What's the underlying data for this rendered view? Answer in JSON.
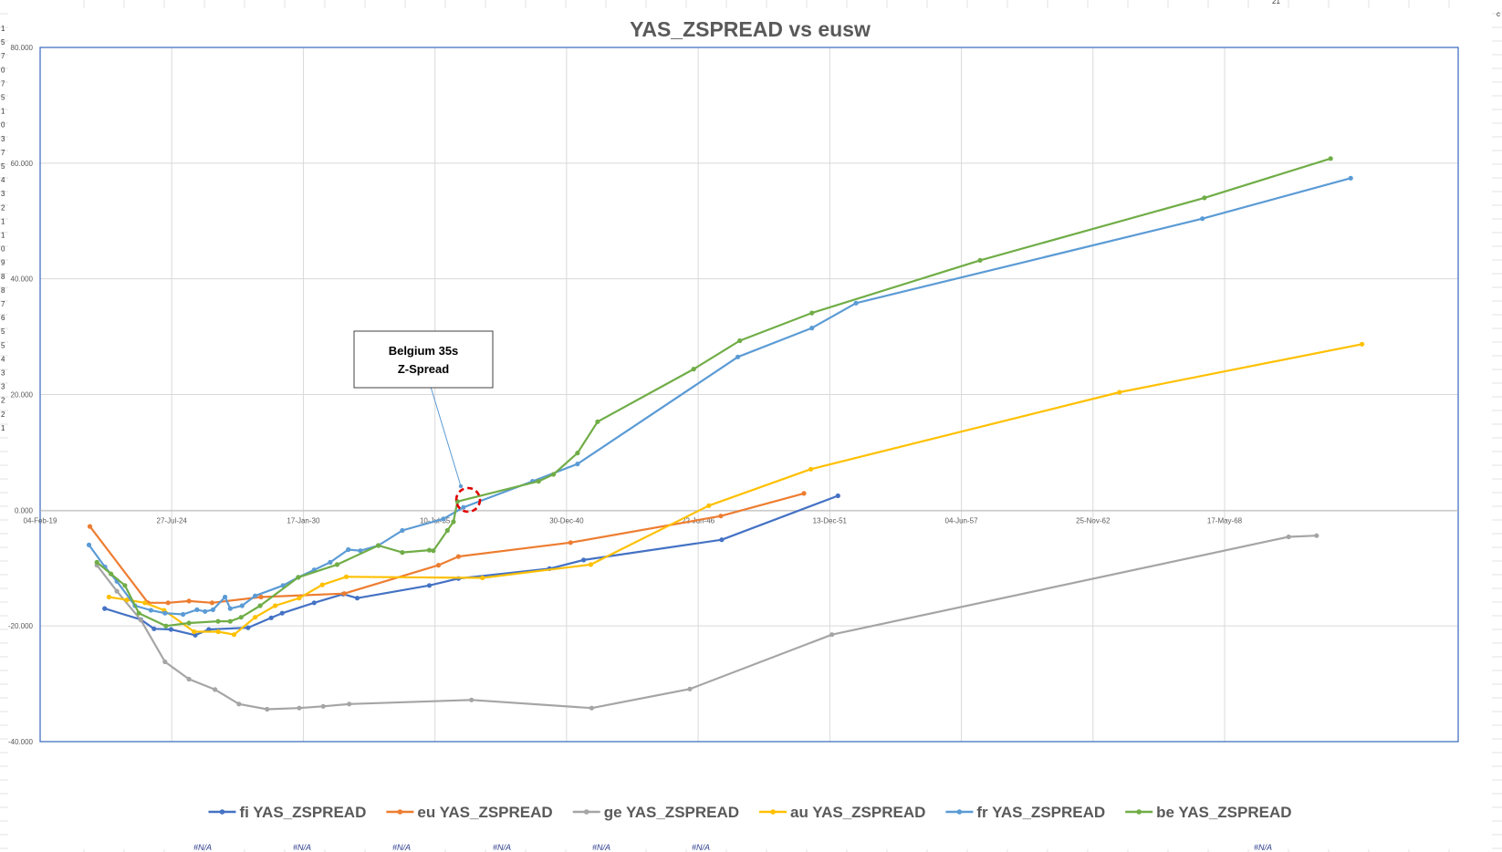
{
  "sheet": {
    "row_header_digits": [
      "1",
      "5",
      "7",
      "0",
      "7",
      "5",
      "1",
      "0",
      "3",
      "7",
      "5",
      "4",
      "3",
      "2",
      "1",
      "1",
      "0",
      "9",
      "8",
      "8",
      "7",
      "6",
      "5",
      "5",
      "4",
      "3",
      "3",
      "2",
      "2",
      "1"
    ],
    "top_cell_text": "21",
    "top_right_text": "c",
    "na_text": "#N/A",
    "na_count": 7
  },
  "chart_data": {
    "type": "line",
    "title": "YAS_ZSPREAD vs eusw",
    "xlabel": "",
    "ylabel": "",
    "x_axis": {
      "type": "date",
      "min": "2019-02-04",
      "max": "2078-02-04",
      "tick_labels": [
        "04-Feb-19",
        "27-Jul-24",
        "17-Jan-30",
        "10-Jul-35",
        "30-Dec-40",
        "22-Jun-46",
        "13-Dec-51",
        "04-Jun-57",
        "25-Nov-62",
        "17-May-68"
      ],
      "tick_dates": [
        "2019-02-04",
        "2024-07-27",
        "2030-01-17",
        "2035-07-10",
        "2040-12-30",
        "2046-06-22",
        "2051-12-13",
        "2057-06-04",
        "2062-11-25",
        "2068-05-17"
      ]
    },
    "y_axis": {
      "min": -40,
      "max": 80,
      "major": 20,
      "tick_labels": [
        "80.000",
        "60.000",
        "40.000",
        "20.000",
        "0.000",
        "-20.000",
        "-40.000"
      ]
    },
    "grid": true,
    "legend_position": "bottom",
    "series": [
      {
        "name": "fi YAS_ZSPREAD",
        "color": "#4472c4",
        "points": [
          [
            "2021-10-12",
            -17
          ],
          [
            "2023-04-15",
            -18.9
          ],
          [
            "2023-11-01",
            -20.5
          ],
          [
            "2024-07-15",
            -20.6
          ],
          [
            "2025-07-20",
            -21.6
          ],
          [
            "2026-02-10",
            -20.6
          ],
          [
            "2027-10-01",
            -20.3
          ],
          [
            "2028-09-15",
            -18.6
          ],
          [
            "2029-03-01",
            -17.8
          ],
          [
            "2030-07-01",
            -16
          ],
          [
            "2031-09-15",
            -14.5
          ],
          [
            "2032-04-15",
            -15.2
          ],
          [
            "2035-04-15",
            -13
          ],
          [
            "2036-07-01",
            -11.8
          ],
          [
            "2040-04-15",
            -10.1
          ],
          [
            "2041-09-15",
            -8.6
          ],
          [
            "2047-06-15",
            -5.1
          ],
          [
            "2052-04-15",
            2.5
          ]
        ]
      },
      {
        "name": "eu YAS_ZSPREAD",
        "color": "#ed7d31",
        "points": [
          [
            "2021-03-01",
            -2.8
          ],
          [
            "2023-08-01",
            -16
          ],
          [
            "2024-06-01",
            -16
          ],
          [
            "2025-04-15",
            -15.7
          ],
          [
            "2026-04-01",
            -16
          ],
          [
            "2028-04-15",
            -15
          ],
          [
            "2031-10-01",
            -14.4
          ],
          [
            "2035-09-01",
            -9.5
          ],
          [
            "2036-07-01",
            -8
          ],
          [
            "2041-03-01",
            -5.6
          ],
          [
            "2047-06-01",
            -1
          ],
          [
            "2050-11-15",
            2.9
          ]
        ]
      },
      {
        "name": "ge YAS_ZSPREAD",
        "color": "#a5a5a5",
        "points": [
          [
            "2021-06-15",
            -9.5
          ],
          [
            "2022-04-15",
            -14
          ],
          [
            "2023-04-15",
            -19
          ],
          [
            "2024-04-15",
            -26.2
          ],
          [
            "2025-04-15",
            -29.2
          ],
          [
            "2026-05-15",
            -31
          ],
          [
            "2027-05-15",
            -33.5
          ],
          [
            "2028-07-15",
            -34.4
          ],
          [
            "2029-11-15",
            -34.2
          ],
          [
            "2030-11-15",
            -33.9
          ],
          [
            "2031-12-15",
            -33.5
          ],
          [
            "2037-01-15",
            -32.8
          ],
          [
            "2042-01-15",
            -34.2
          ],
          [
            "2046-02-15",
            -30.9
          ],
          [
            "2052-01-15",
            -21.5
          ],
          [
            "2071-01-15",
            -4.6
          ],
          [
            "2072-03-15",
            -4.4
          ]
        ]
      },
      {
        "name": "au YAS_ZSPREAD",
        "color": "#ffc000",
        "points": [
          [
            "2021-12-15",
            -15
          ],
          [
            "2022-09-15",
            -15.5
          ],
          [
            "2023-06-15",
            -16
          ],
          [
            "2024-04-01",
            -17.3
          ],
          [
            "2025-07-01",
            -21
          ],
          [
            "2026-07-01",
            -21
          ],
          [
            "2027-03-01",
            -21.5
          ],
          [
            "2028-01-15",
            -18.5
          ],
          [
            "2028-11-15",
            -16.5
          ],
          [
            "2029-11-15",
            -15.2
          ],
          [
            "2030-11-01",
            -12.9
          ],
          [
            "2031-11-01",
            -11.5
          ],
          [
            "2037-07-01",
            -11.7
          ],
          [
            "2042-01-01",
            -9.4
          ],
          [
            "2046-12-01",
            0.8
          ],
          [
            "2051-03-01",
            7.1
          ],
          [
            "2064-01-01",
            20.4
          ],
          [
            "2074-02-04",
            28.7
          ]
        ]
      },
      {
        "name": "fr YAS_ZSPREAD",
        "color": "#5b9bd5",
        "points": [
          [
            "2021-02-15",
            -6
          ],
          [
            "2021-10-15",
            -9.8
          ],
          [
            "2022-04-15",
            -12.3
          ],
          [
            "2023-01-15",
            -16.5
          ],
          [
            "2023-09-15",
            -17.3
          ],
          [
            "2024-04-15",
            -17.8
          ],
          [
            "2025-01-15",
            -18
          ],
          [
            "2025-08-15",
            -17.2
          ],
          [
            "2025-12-15",
            -17.5
          ],
          [
            "2026-04-15",
            -17.2
          ],
          [
            "2026-10-15",
            -15
          ],
          [
            "2027-01-01",
            -17
          ],
          [
            "2027-07-01",
            -16.5
          ],
          [
            "2028-01-15",
            -14.8
          ],
          [
            "2029-03-15",
            -13
          ],
          [
            "2029-11-01",
            -11.6
          ],
          [
            "2030-07-01",
            -10.3
          ],
          [
            "2031-03-01",
            -9
          ],
          [
            "2031-12-01",
            -6.8
          ],
          [
            "2032-06-01",
            -7
          ],
          [
            "2033-03-01",
            -6.1
          ],
          [
            "2034-03-01",
            -3.5
          ],
          [
            "2035-11-15",
            -1.5
          ],
          [
            "2036-09-15",
            0.5
          ],
          [
            "2039-08-01",
            5
          ],
          [
            "2041-06-15",
            8
          ],
          [
            "2048-02-15",
            26.5
          ],
          [
            "2051-03-15",
            31.5
          ],
          [
            "2053-01-15",
            35.8
          ],
          [
            "2067-06-15",
            50.4
          ],
          [
            "2073-08-15",
            57.4
          ]
        ]
      },
      {
        "name": "be YAS_ZSPREAD",
        "color": "#70ad47",
        "points": [
          [
            "2021-06-15",
            -9
          ],
          [
            "2022-01-15",
            -11
          ],
          [
            "2022-08-15",
            -13
          ],
          [
            "2023-03-15",
            -17.8
          ],
          [
            "2024-05-01",
            -20
          ],
          [
            "2025-04-15",
            -19.5
          ],
          [
            "2026-07-01",
            -19.2
          ],
          [
            "2027-01-01",
            -19.2
          ],
          [
            "2027-06-15",
            -18.5
          ],
          [
            "2028-04-01",
            -16.5
          ],
          [
            "2029-11-01",
            -11.6
          ],
          [
            "2031-06-15",
            -9.4
          ],
          [
            "2033-03-01",
            -6.1
          ],
          [
            "2034-03-01",
            -7.3
          ],
          [
            "2035-04-15",
            -6.9
          ],
          [
            "2035-06-15",
            -7
          ],
          [
            "2036-01-15",
            -3.5
          ],
          [
            "2036-04-15",
            -2
          ],
          [
            "2036-06-15",
            1.5
          ],
          [
            "2039-11-01",
            5
          ],
          [
            "2040-06-15",
            6.2
          ],
          [
            "2041-06-15",
            9.9
          ],
          [
            "2042-04-15",
            15.3
          ],
          [
            "2046-04-15",
            24.4
          ],
          [
            "2048-03-15",
            29.3
          ],
          [
            "2051-03-15",
            34.1
          ],
          [
            "2058-03-15",
            43.2
          ],
          [
            "2067-07-15",
            54
          ],
          [
            "2072-10-15",
            60.8
          ]
        ]
      }
    ],
    "annotations": [
      {
        "text_lines": [
          "Belgium 35s",
          "Z-Spread"
        ],
        "points_to": [
          "2036-03-15",
          1.8
        ],
        "marker": "dashed red circle"
      }
    ]
  }
}
